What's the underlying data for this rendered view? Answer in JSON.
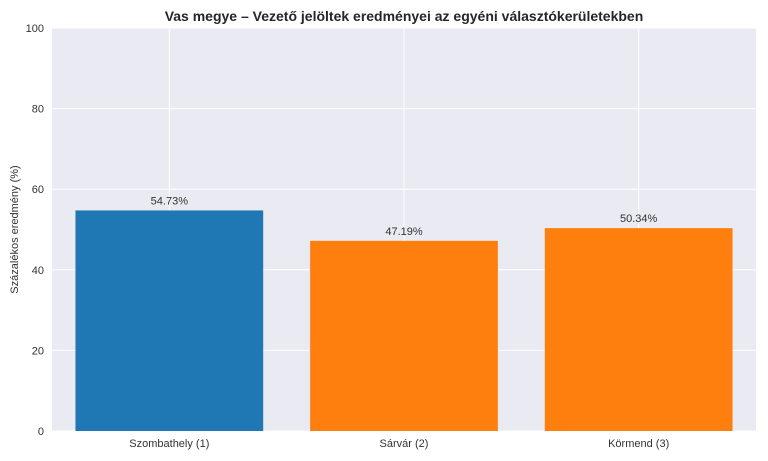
{
  "chart_data": {
    "type": "bar",
    "title": "Vas megye – Vezető jelöltek eredményei az egyéni választókerületekben",
    "xlabel": "",
    "ylabel": "Százalékos eredmény (%)",
    "ylim": [
      0,
      100
    ],
    "yticks": [
      "0",
      "20",
      "40",
      "60",
      "80",
      "100"
    ],
    "categories": [
      "Szombathely (1)",
      "Sárvár (2)",
      "Körmend (3)"
    ],
    "values": [
      54.73,
      47.19,
      50.34
    ],
    "data_labels": [
      "54.73%",
      "47.19%",
      "50.34%"
    ],
    "bar_colors": [
      "#1f77b4",
      "#ff7f0e",
      "#ff7f0e"
    ],
    "grid": true,
    "background": "#eaeaf2",
    "grid_color": "#ffffff"
  }
}
